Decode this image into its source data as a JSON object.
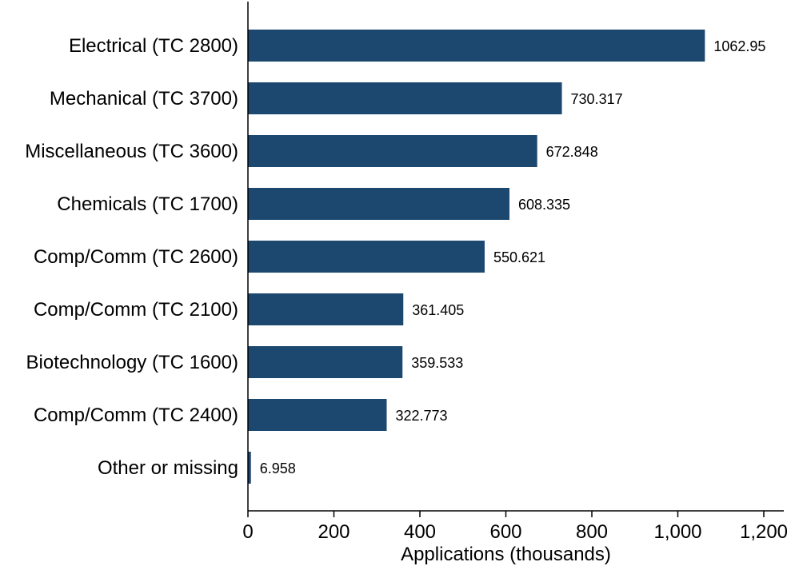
{
  "chart_data": {
    "type": "bar",
    "orientation": "horizontal",
    "title": "",
    "xlabel": "Applications (thousands)",
    "ylabel": "",
    "xlim": [
      0,
      1200
    ],
    "x_ticks": [
      0,
      200,
      400,
      600,
      800,
      1000,
      1200
    ],
    "x_tick_labels": [
      "0",
      "200",
      "400",
      "600",
      "800",
      "1,000",
      "1,200"
    ],
    "grid": false,
    "bar_color": "#1c4870",
    "categories": [
      "Electrical (TC 2800)",
      "Mechanical (TC 3700)",
      "Miscellaneous (TC 3600)",
      "Chemicals (TC 1700)",
      "Comp/Comm (TC 2600)",
      "Comp/Comm (TC 2100)",
      "Biotechnology (TC 1600)",
      "Comp/Comm (TC 2400)",
      "Other or missing"
    ],
    "values": [
      1062.95,
      730.317,
      672.848,
      608.335,
      550.621,
      361.405,
      359.533,
      322.773,
      6.958
    ],
    "value_labels": [
      "1062.95",
      "730.317",
      "672.848",
      "608.335",
      "550.621",
      "361.405",
      "359.533",
      "322.773",
      "6.958"
    ]
  }
}
